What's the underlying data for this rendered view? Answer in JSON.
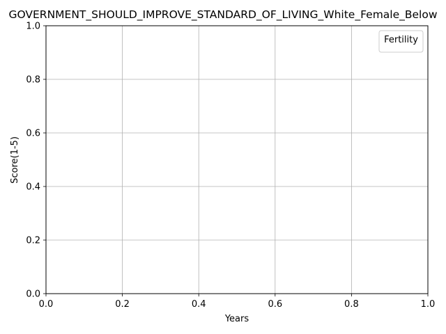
{
  "chart_data": {
    "type": "line",
    "title": "GOVERNMENT_SHOULD_IMPROVE_STANDARD_OF_LIVING_White_Female_Below",
    "xlabel": "Years",
    "ylabel": "Score(1-5)",
    "xlim": [
      0.0,
      1.0
    ],
    "ylim": [
      0.0,
      1.0
    ],
    "x_ticks": [
      "0.0",
      "0.2",
      "0.4",
      "0.6",
      "0.8",
      "1.0"
    ],
    "y_ticks": [
      "0.0",
      "0.2",
      "0.4",
      "0.6",
      "0.8",
      "1.0"
    ],
    "grid": true,
    "legend": {
      "title": "Fertility",
      "position": "top-right",
      "entries": []
    },
    "series": []
  },
  "colors": {
    "grid": "#b0b0b0",
    "axis": "#000000",
    "legend_border": "#cccccc"
  }
}
